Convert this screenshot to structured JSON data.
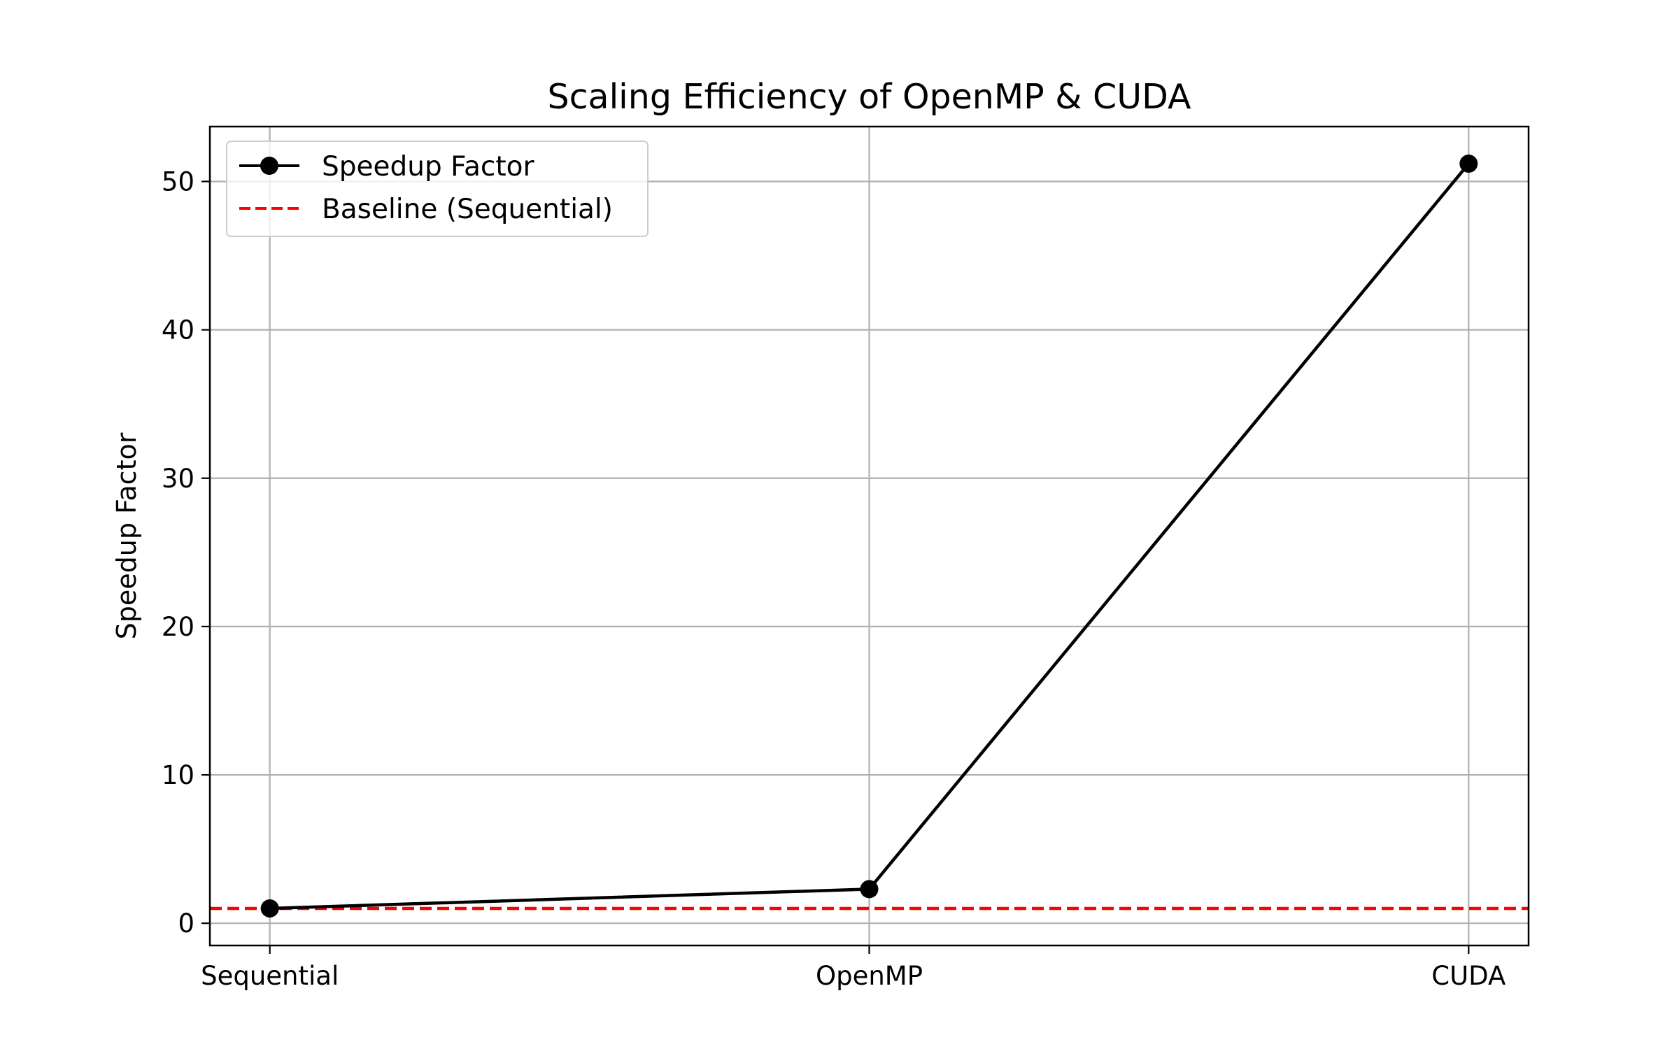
{
  "chart_data": {
    "type": "line",
    "title": "Scaling Efficiency of OpenMP & CUDA",
    "xlabel": "",
    "ylabel": "Speedup Factor",
    "categories": [
      "Sequential",
      "OpenMP",
      "CUDA"
    ],
    "series": [
      {
        "name": "Speedup Factor",
        "values": [
          1.0,
          2.3,
          51.2
        ],
        "color": "#000000",
        "line_style": "solid",
        "marker": "circle"
      }
    ],
    "baseline": {
      "name": "Baseline (Sequential)",
      "value": 1.0,
      "color": "#ff0000",
      "line_style": "dashed"
    },
    "yticks": [
      0,
      10,
      20,
      30,
      40,
      50
    ],
    "ytick_labels": [
      "0",
      "10",
      "20",
      "30",
      "40",
      "50"
    ],
    "ylim": [
      -1.5,
      53.7
    ],
    "xlim": [
      -0.1,
      2.1
    ],
    "grid": true,
    "legend_position": "upper-left"
  },
  "colors": {
    "grid": "#b0b0b0",
    "axes": "#000000",
    "background": "#ffffff"
  }
}
